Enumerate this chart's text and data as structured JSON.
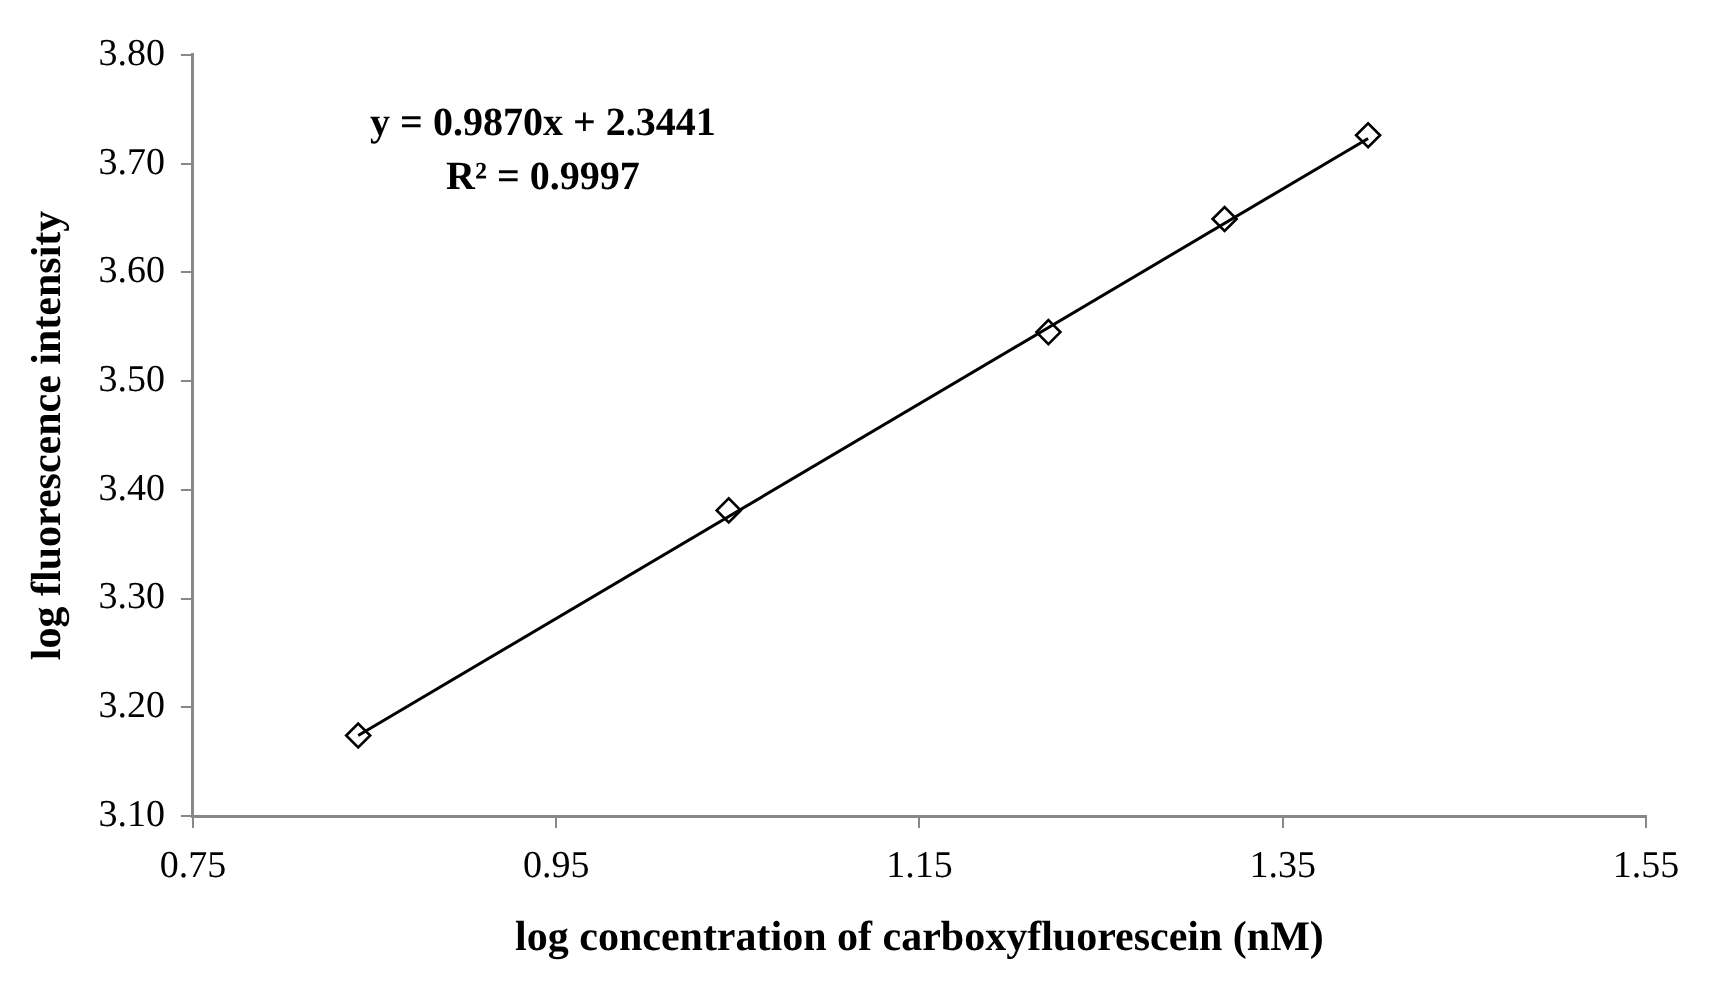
{
  "chart_data": {
    "type": "scatter",
    "xlabel": "log concentration of carboxyfluorescein (nM)",
    "ylabel": "log fluorescence intensity",
    "annotations": [
      "y = 0.9870x + 2.3441",
      "R² = 0.9997"
    ],
    "series": [
      {
        "type": "scatter",
        "color": "#000000",
        "marker": "diamond",
        "x": [
          0.841,
          1.045,
          1.221,
          1.318,
          1.397
        ],
        "values": [
          3.174,
          3.381,
          3.545,
          3.649,
          3.726
        ]
      },
      {
        "type": "line",
        "color": "#000000",
        "marker": "none",
        "line_style": "solid",
        "x": [
          0.841,
          1.397
        ],
        "values": [
          3.174,
          3.723
        ]
      }
    ],
    "xlim": [
      0.75,
      1.55
    ],
    "xticks": [
      0.75,
      0.95,
      1.15,
      1.35,
      1.55
    ],
    "ylim": [
      3.1,
      3.8
    ],
    "yticks": [
      {
        "value": 3.1,
        "label": "3.10"
      },
      {
        "value": 3.2,
        "label": "3.20"
      },
      {
        "value": 3.3,
        "label": "3.30"
      },
      {
        "value": 3.4,
        "label": "3.40"
      },
      {
        "value": 3.5,
        "label": "3.50"
      },
      {
        "value": 3.6,
        "label": "3.60"
      },
      {
        "value": 3.7,
        "label": "3.70"
      },
      {
        "value": 3.8,
        "label": "3.80"
      }
    ],
    "grid": false,
    "legend": false
  }
}
